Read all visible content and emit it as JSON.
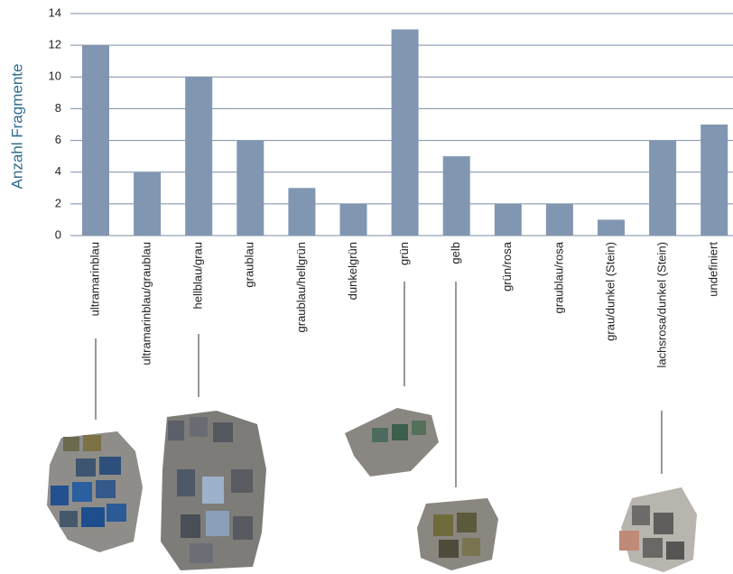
{
  "chart_data": {
    "type": "bar",
    "y_label": "Anzahl Fragmente",
    "categories": [
      "ultramarinblau",
      "ultramarinblau/graublau",
      "hellblau/grau",
      "graublau",
      "graublau/hellgrün",
      "dunkelgrün",
      "grün",
      "gelb",
      "grün/rosa",
      "graublau/rosa",
      "grau/dunkel (Stein)",
      "lachsrosa/dunkel (Stein)",
      "undefiniert"
    ],
    "values": [
      12,
      4,
      10,
      6,
      3,
      2,
      13,
      5,
      2,
      2,
      1,
      6,
      7
    ],
    "color": "#8197b1",
    "ylim": [
      0,
      14
    ],
    "yticks": [
      0,
      2,
      4,
      6,
      8,
      10,
      12,
      14
    ],
    "grid": true
  }
}
